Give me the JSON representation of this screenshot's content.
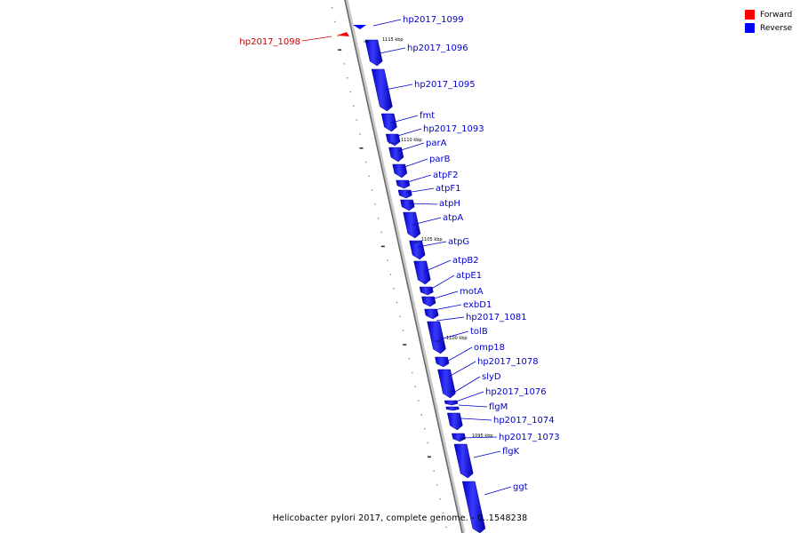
{
  "legend": {
    "forward_label": "Forward",
    "reverse_label": "Reverse",
    "forward_color": "#ff0000",
    "reverse_color": "#0000ff"
  },
  "caption": "Helicobacter pylori 2017, complete genome. - 0..1548238",
  "ticks": [
    "1115 kbp",
    "1110 kbp",
    "1105 kbp",
    "1100 kbp",
    "1095 kbp"
  ],
  "genes": [
    {
      "name": "hp2017_1099",
      "strand": "reverse"
    },
    {
      "name": "hp2017_1098",
      "strand": "forward"
    },
    {
      "name": "hp2017_1096",
      "strand": "reverse"
    },
    {
      "name": "hp2017_1095",
      "strand": "reverse"
    },
    {
      "name": "fmt",
      "strand": "reverse"
    },
    {
      "name": "hp2017_1093",
      "strand": "reverse"
    },
    {
      "name": "parA",
      "strand": "reverse"
    },
    {
      "name": "parB",
      "strand": "reverse"
    },
    {
      "name": "atpF2",
      "strand": "reverse"
    },
    {
      "name": "atpF1",
      "strand": "reverse"
    },
    {
      "name": "atpH",
      "strand": "reverse"
    },
    {
      "name": "atpA",
      "strand": "reverse"
    },
    {
      "name": "atpG",
      "strand": "reverse"
    },
    {
      "name": "atpB2",
      "strand": "reverse"
    },
    {
      "name": "atpE1",
      "strand": "reverse"
    },
    {
      "name": "motA",
      "strand": "reverse"
    },
    {
      "name": "exbD1",
      "strand": "reverse"
    },
    {
      "name": "hp2017_1081",
      "strand": "reverse"
    },
    {
      "name": "tolB",
      "strand": "reverse"
    },
    {
      "name": "omp18",
      "strand": "reverse"
    },
    {
      "name": "hp2017_1078",
      "strand": "reverse"
    },
    {
      "name": "slyD",
      "strand": "reverse"
    },
    {
      "name": "hp2017_1076",
      "strand": "reverse"
    },
    {
      "name": "flgM",
      "strand": "reverse"
    },
    {
      "name": "hp2017_1074",
      "strand": "reverse"
    },
    {
      "name": "hp2017_1073",
      "strand": "reverse"
    },
    {
      "name": "flgK",
      "strand": "reverse"
    },
    {
      "name": "ggt",
      "strand": "reverse"
    }
  ]
}
